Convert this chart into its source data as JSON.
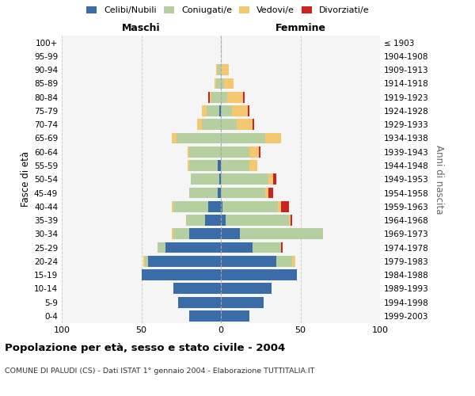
{
  "age_groups": [
    "0-4",
    "5-9",
    "10-14",
    "15-19",
    "20-24",
    "25-29",
    "30-34",
    "35-39",
    "40-44",
    "45-49",
    "50-54",
    "55-59",
    "60-64",
    "65-69",
    "70-74",
    "75-79",
    "80-84",
    "85-89",
    "90-94",
    "95-99",
    "100+"
  ],
  "birth_years": [
    "1999-2003",
    "1994-1998",
    "1989-1993",
    "1984-1988",
    "1979-1983",
    "1974-1978",
    "1969-1973",
    "1964-1968",
    "1959-1963",
    "1954-1958",
    "1949-1953",
    "1944-1948",
    "1939-1943",
    "1934-1938",
    "1929-1933",
    "1924-1928",
    "1919-1923",
    "1914-1918",
    "1909-1913",
    "1904-1908",
    "≤ 1903"
  ],
  "maschi": {
    "celibi": [
      20,
      27,
      30,
      50,
      46,
      35,
      20,
      10,
      8,
      2,
      1,
      2,
      0,
      0,
      0,
      1,
      0,
      0,
      0,
      0,
      0
    ],
    "coniugati": [
      0,
      0,
      0,
      0,
      2,
      5,
      10,
      12,
      22,
      18,
      18,
      18,
      20,
      28,
      12,
      8,
      6,
      3,
      2,
      0,
      0
    ],
    "vedovi": [
      0,
      0,
      0,
      0,
      1,
      0,
      1,
      0,
      1,
      0,
      0,
      1,
      1,
      3,
      3,
      3,
      1,
      1,
      1,
      0,
      0
    ],
    "divorziati": [
      0,
      0,
      0,
      0,
      0,
      0,
      0,
      0,
      0,
      0,
      0,
      0,
      0,
      0,
      0,
      0,
      1,
      0,
      0,
      0,
      0
    ]
  },
  "femmine": {
    "nubili": [
      18,
      27,
      32,
      48,
      35,
      20,
      12,
      3,
      1,
      0,
      0,
      0,
      0,
      0,
      0,
      0,
      0,
      0,
      0,
      0,
      0
    ],
    "coniugate": [
      0,
      0,
      0,
      0,
      10,
      18,
      52,
      40,
      35,
      28,
      30,
      18,
      18,
      28,
      10,
      7,
      4,
      2,
      0,
      0,
      0
    ],
    "vedove": [
      0,
      0,
      0,
      0,
      2,
      0,
      0,
      1,
      2,
      2,
      3,
      5,
      6,
      10,
      10,
      10,
      10,
      6,
      5,
      0,
      0
    ],
    "divorziate": [
      0,
      0,
      0,
      0,
      0,
      1,
      0,
      1,
      5,
      3,
      2,
      0,
      1,
      0,
      1,
      1,
      1,
      0,
      0,
      0,
      0
    ]
  },
  "colors": {
    "celibi": "#3a6ca8",
    "coniugati": "#b5cfa0",
    "vedovi": "#f5c76e",
    "divorziati": "#cc2222"
  },
  "xlim": 100,
  "title": "Popolazione per età, sesso e stato civile - 2004",
  "subtitle": "COMUNE DI PALUDI (CS) - Dati ISTAT 1° gennaio 2004 - Elaborazione TUTTITALIA.IT",
  "legend_labels": [
    "Celibi/Nubili",
    "Coniugati/e",
    "Vedovi/e",
    "Divorziati/e"
  ],
  "maschi_label": "Maschi",
  "femmine_label": "Femmine",
  "ylabel_left": "Fasce di età",
  "ylabel_right": "Anni di nascita"
}
